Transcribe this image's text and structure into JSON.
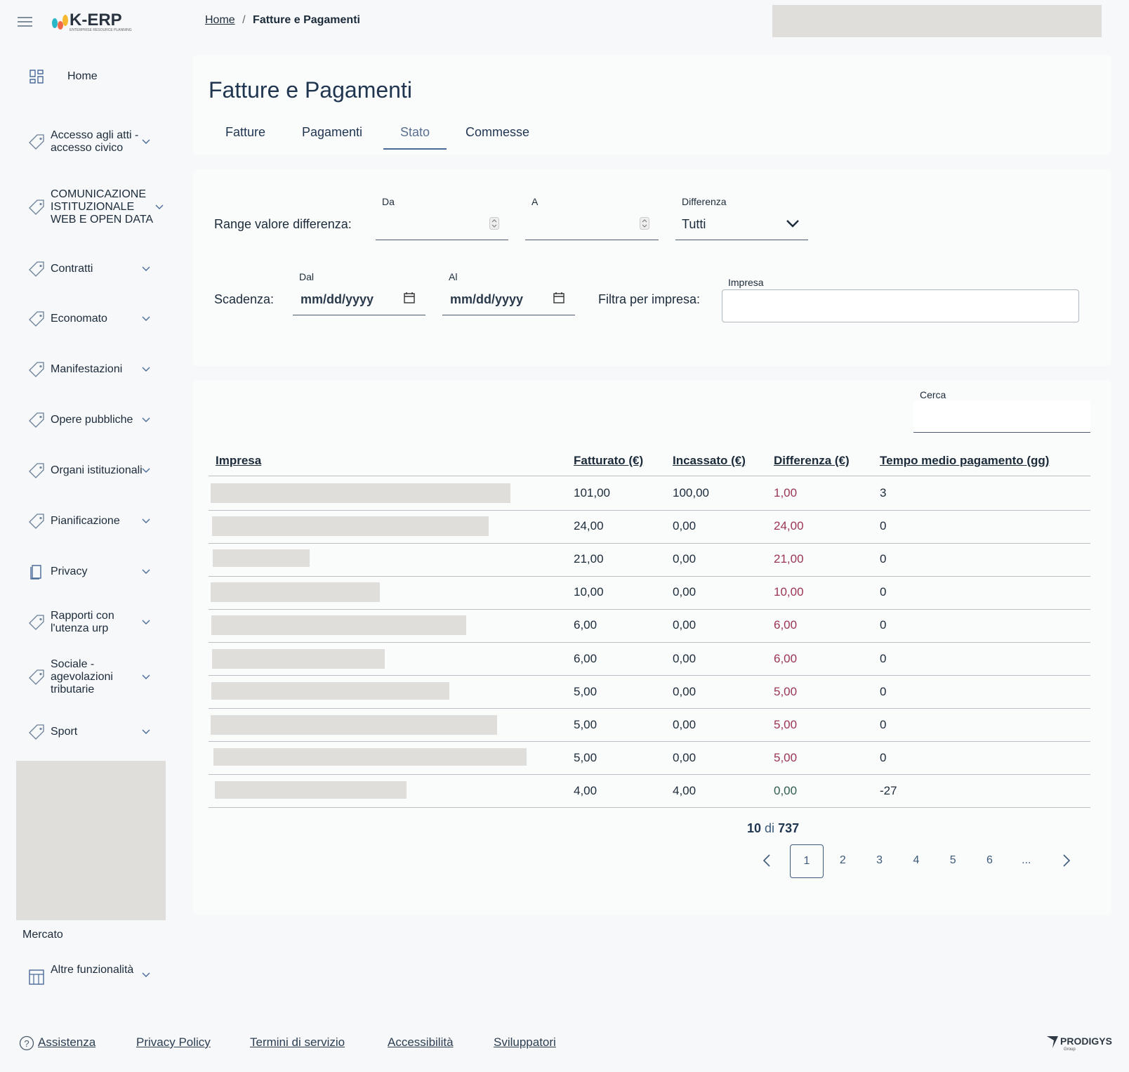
{
  "header": {
    "logo": "K-ERP",
    "logo_sub": "ENTERPRISE RESOURCE PLANNING",
    "breadcrumb": [
      "Home",
      "Fatture e Pagamenti"
    ]
  },
  "sidebar": {
    "items": [
      "Home",
      "Accesso agli atti - accesso civico",
      "COMUNICAZIONE ISTITUZIONALE WEB E OPEN DATA",
      "Contratti",
      "Economato",
      "Manifestazioni",
      "Opere pubbliche",
      "Organi istituzionali",
      "Pianificazione",
      "Privacy",
      "Rapporti con l'utenza urp",
      "Sociale - agevolazioni tributarie",
      "Sport"
    ],
    "mercato": "Mercato",
    "extra": "Altre funzionalità"
  },
  "page": {
    "title": "Fatture e Pagamenti",
    "tabs": [
      "Fatture",
      "Pagamenti",
      "Stato",
      "Commesse"
    ],
    "active_tab": 2
  },
  "filters": {
    "range_label": "Range valore differenza:",
    "da": "Da",
    "a": "A",
    "differenza": "Differenza",
    "differenza_value": "Tutti",
    "scadenza_label": "Scadenza:",
    "dal": "Dal",
    "al": "Al",
    "date_placeholder": "mm/dd/yyyy",
    "impresa_filter_label": "Filtra per impresa:",
    "impresa": "Impresa"
  },
  "table": {
    "search_label": "Cerca",
    "columns": [
      "Impresa",
      "Fatturato (€)",
      "Incassato (€)",
      "Differenza (€)",
      "Tempo medio pagamento (gg)"
    ],
    "rows": [
      {
        "cells": [
          "101,00",
          "100,00",
          "1,00",
          "3"
        ],
        "difference_color": "#9b3553"
      },
      {
        "cells": [
          "24,00",
          "0,00",
          "24,00",
          "0"
        ],
        "difference_color": "#9b3553"
      },
      {
        "cells": [
          "21,00",
          "0,00",
          "21,00",
          "0"
        ],
        "difference_color": "#9b3553"
      },
      {
        "cells": [
          "10,00",
          "0,00",
          "10,00",
          "0"
        ],
        "difference_color": "#9b3553"
      },
      {
        "cells": [
          "6,00",
          "0,00",
          "6,00",
          "0"
        ],
        "difference_color": "#9b3553"
      },
      {
        "cells": [
          "6,00",
          "0,00",
          "6,00",
          "0"
        ],
        "difference_color": "#9b3553"
      },
      {
        "cells": [
          "5,00",
          "0,00",
          "5,00",
          "0"
        ],
        "difference_color": "#9b3553"
      },
      {
        "cells": [
          "5,00",
          "0,00",
          "5,00",
          "0"
        ],
        "difference_color": "#9b3553"
      },
      {
        "cells": [
          "5,00",
          "0,00",
          "5,00",
          "0"
        ],
        "difference_color": "#9b3553"
      },
      {
        "cells": [
          "4,00",
          "4,00",
          "0,00",
          "-27"
        ],
        "difference_color": "#2e5e4e"
      }
    ]
  },
  "pagination": {
    "shown": "10",
    "of": "di",
    "total": "737",
    "pages": [
      "1",
      "2",
      "3",
      "4",
      "5",
      "6",
      "..."
    ],
    "current": 0
  },
  "footer": {
    "links": [
      "Assistenza",
      "Privacy Policy",
      "Termini di servizio",
      "Accessibilità",
      "Sviluppatori"
    ],
    "brand": "PRODIGYS",
    "brand_sub": "Group"
  }
}
